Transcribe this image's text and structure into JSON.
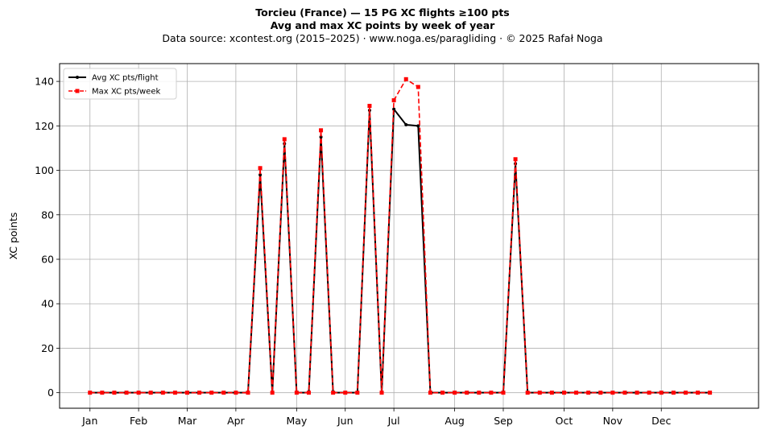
{
  "chart_data": {
    "type": "line",
    "title": "Torcieu (France)  —  15 PG XC flights ≥100 pts",
    "subtitle": "Avg and max XC points by week of year",
    "source": "Data source: xcontest.org (2015–2025)  ·  www.noga.es/paragliding  ·  © 2025 Rafał Noga",
    "xlabel": "",
    "ylabel": "XC points",
    "xlim": [
      -2.5,
      55
    ],
    "ylim": [
      -7,
      148
    ],
    "yticks": [
      0,
      20,
      40,
      60,
      80,
      100,
      120,
      140
    ],
    "month_ticks": [
      {
        "label": "Jan",
        "week": 0
      },
      {
        "label": "Feb",
        "week": 4
      },
      {
        "label": "Mar",
        "week": 8
      },
      {
        "label": "Apr",
        "week": 12
      },
      {
        "label": "May",
        "week": 17
      },
      {
        "label": "Jun",
        "week": 21
      },
      {
        "label": "Jul",
        "week": 25
      },
      {
        "label": "Aug",
        "week": 30
      },
      {
        "label": "Sep",
        "week": 34
      },
      {
        "label": "Oct",
        "week": 39
      },
      {
        "label": "Nov",
        "week": 43
      },
      {
        "label": "Dec",
        "week": 47
      }
    ],
    "grid": true,
    "legend_position": "top-left",
    "x": [
      0,
      1,
      2,
      3,
      4,
      5,
      6,
      7,
      8,
      9,
      10,
      11,
      12,
      13,
      14,
      15,
      16,
      17,
      18,
      19,
      20,
      21,
      22,
      23,
      24,
      25,
      26,
      27,
      28,
      29,
      30,
      31,
      32,
      33,
      34,
      35,
      36,
      37,
      38,
      39,
      40,
      41,
      42,
      43,
      44,
      45,
      46,
      47,
      48,
      49,
      50,
      51
    ],
    "series": [
      {
        "name": "Avg XC pts/flight",
        "color": "#000000",
        "style": "solid",
        "marker": "circle",
        "values": [
          0,
          0,
          0,
          0,
          0,
          0,
          0,
          0,
          0,
          0,
          0,
          0,
          0,
          0,
          98,
          0,
          112,
          0,
          0,
          115,
          0,
          0,
          0,
          127,
          0,
          127.5,
          120.5,
          120,
          0,
          0,
          0,
          0,
          0,
          0,
          0,
          103,
          0,
          0,
          0,
          0,
          0,
          0,
          0,
          0,
          0,
          0,
          0,
          0,
          0,
          0,
          0,
          0
        ]
      },
      {
        "name": "Max XC pts/week",
        "color": "#ff0000",
        "style": "dashed",
        "marker": "square",
        "values": [
          0,
          0,
          0,
          0,
          0,
          0,
          0,
          0,
          0,
          0,
          0,
          0,
          0,
          0,
          101,
          0,
          114,
          0,
          0,
          118,
          0,
          0,
          0,
          129,
          0,
          131.5,
          141,
          137.5,
          0,
          0,
          0,
          0,
          0,
          0,
          0,
          105,
          0,
          0,
          0,
          0,
          0,
          0,
          0,
          0,
          0,
          0,
          0,
          0,
          0,
          0,
          0,
          0
        ]
      }
    ]
  }
}
